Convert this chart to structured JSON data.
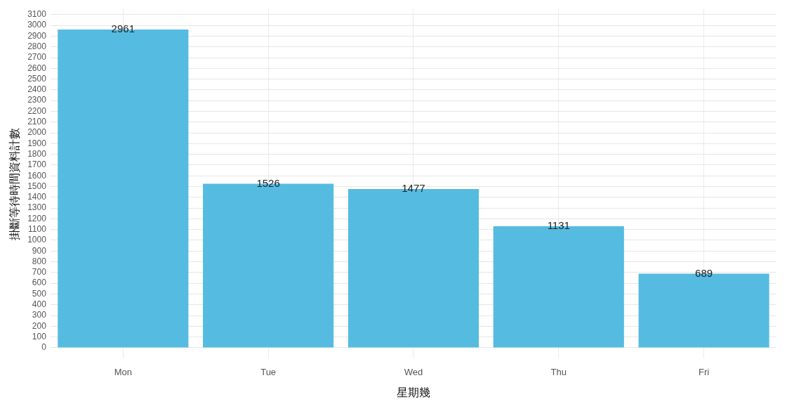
{
  "chart_data": {
    "type": "bar",
    "xlabel": "星期幾",
    "ylabel": "掛斷等待時間資料計數",
    "categories": [
      "Mon",
      "Tue",
      "Wed",
      "Thu",
      "Fri"
    ],
    "values": [
      2961,
      1526,
      1477,
      1131,
      689
    ],
    "color": "#56bbe1",
    "ylim": [
      -100,
      3150
    ],
    "yticks": [
      0,
      100,
      200,
      300,
      400,
      500,
      600,
      700,
      800,
      900,
      1000,
      1100,
      1200,
      1300,
      1400,
      1500,
      1600,
      1700,
      1800,
      1900,
      2000,
      2100,
      2200,
      2300,
      2400,
      2500,
      2600,
      2700,
      2800,
      2900,
      3000,
      3100
    ],
    "grid": true,
    "data_labels": true,
    "legend": false
  }
}
